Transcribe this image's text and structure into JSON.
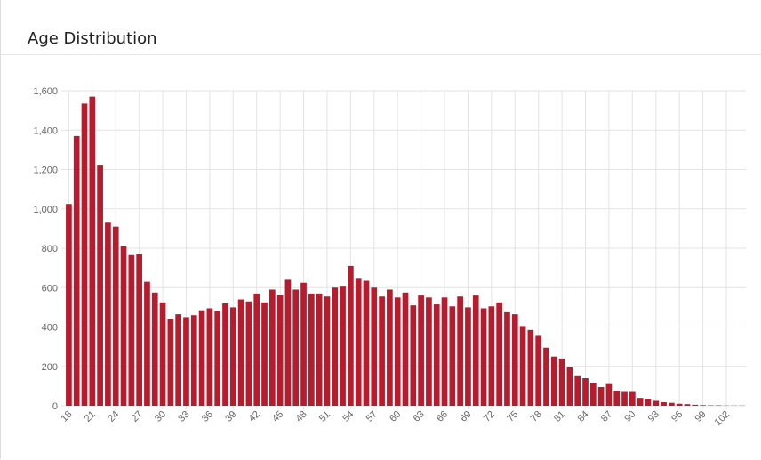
{
  "chart_data": {
    "type": "bar",
    "title": "Age Distribution",
    "categories": [
      "18",
      null,
      null,
      "21",
      null,
      null,
      "24",
      null,
      null,
      "27",
      null,
      null,
      "30",
      null,
      null,
      "33",
      null,
      null,
      "36",
      null,
      null,
      "39",
      null,
      null,
      "42",
      null,
      null,
      "45",
      null,
      null,
      "48",
      null,
      null,
      "51",
      null,
      null,
      "54",
      null,
      null,
      "57",
      null,
      null,
      "60",
      null,
      null,
      "63",
      null,
      null,
      "66",
      null,
      null,
      "69",
      null,
      null,
      "72",
      null,
      null,
      "75",
      null,
      null,
      "78",
      null,
      null,
      "81",
      null,
      null,
      "84",
      null,
      null,
      "87",
      null,
      null,
      "90",
      null,
      null,
      "93",
      null,
      null,
      "96",
      null,
      null,
      "99",
      null,
      null,
      "102",
      null,
      null
    ],
    "values": [
      1025,
      1370,
      1535,
      1570,
      1220,
      930,
      910,
      810,
      765,
      770,
      630,
      575,
      525,
      440,
      465,
      450,
      460,
      485,
      495,
      480,
      520,
      500,
      540,
      530,
      570,
      525,
      590,
      565,
      640,
      590,
      625,
      570,
      570,
      555,
      600,
      605,
      710,
      645,
      635,
      600,
      555,
      590,
      550,
      575,
      510,
      560,
      550,
      515,
      550,
      505,
      555,
      500,
      560,
      495,
      505,
      525,
      475,
      465,
      405,
      385,
      355,
      295,
      250,
      240,
      195,
      150,
      140,
      115,
      95,
      110,
      75,
      70,
      70,
      40,
      35,
      25,
      18,
      15,
      10,
      8,
      5,
      3,
      2,
      2,
      1,
      1,
      1
    ],
    "color": "#b71c2e",
    "ylim": [
      0,
      1600
    ],
    "yticks": [
      0,
      200,
      400,
      600,
      800,
      {
        "value": 1000,
        "label": "1,000"
      },
      {
        "value": 1200,
        "label": "1,200"
      },
      {
        "value": 1400,
        "label": "1,400"
      },
      {
        "value": 1600,
        "label": "1,600"
      }
    ],
    "grid": true
  }
}
